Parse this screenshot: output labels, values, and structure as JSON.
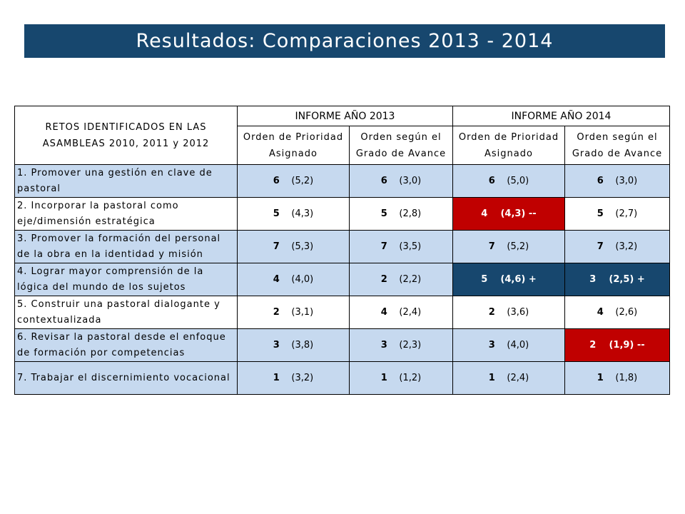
{
  "title": "Resultados: Comparaciones 2013 - 2014",
  "table": {
    "retos_header": "RETOS IDENTIFICADOS EN LAS ASAMBLEAS 2010, 2011 y 2012",
    "year_headers": [
      "INFORME AÑO 2013",
      "INFORME AÑO 2014"
    ],
    "sub_headers": [
      "Orden de Prioridad Asignado",
      "Orden según el Grado de Avance",
      "Orden de Prioridad Asignado",
      "Orden según el Grado de Avance"
    ],
    "rows": [
      {
        "label": "1. Promover una gestión en clave de pastoral",
        "cells": [
          {
            "pos": "6",
            "score": "(5,2)",
            "suffix": ""
          },
          {
            "pos": "6",
            "score": "(3,0)",
            "suffix": ""
          },
          {
            "pos": "6",
            "score": "(5,0)",
            "suffix": ""
          },
          {
            "pos": "6",
            "score": "(3,0)",
            "suffix": ""
          }
        ]
      },
      {
        "label": "2. Incorporar la pastoral como eje/dimensión estratégica",
        "cells": [
          {
            "pos": "5",
            "score": "(4,3)",
            "suffix": ""
          },
          {
            "pos": "5",
            "score": "(2,8)",
            "suffix": ""
          },
          {
            "pos": "4",
            "score": "(4,3)",
            "suffix": " --"
          },
          {
            "pos": "5",
            "score": "(2,7)",
            "suffix": ""
          }
        ]
      },
      {
        "label": "3. Promover la formación del personal de la obra en la identidad y misión",
        "cells": [
          {
            "pos": "7",
            "score": "(5,3)",
            "suffix": ""
          },
          {
            "pos": "7",
            "score": "(3,5)",
            "suffix": ""
          },
          {
            "pos": "7",
            "score": "(5,2)",
            "suffix": ""
          },
          {
            "pos": "7",
            "score": "(3,2)",
            "suffix": ""
          }
        ]
      },
      {
        "label": "4. Lograr mayor comprensión de la lógica del mundo de los sujetos",
        "cells": [
          {
            "pos": "4",
            "score": "(4,0)",
            "suffix": ""
          },
          {
            "pos": "2",
            "score": "(2,2)",
            "suffix": ""
          },
          {
            "pos": "5",
            "score": "(4,6)",
            "suffix": " +"
          },
          {
            "pos": "3",
            "score": "(2,5)",
            "suffix": " +"
          }
        ]
      },
      {
        "label": "5. Construir una pastoral dialogante y contextualizada",
        "cells": [
          {
            "pos": "2",
            "score": "(3,1)",
            "suffix": ""
          },
          {
            "pos": "4",
            "score": "(2,4)",
            "suffix": ""
          },
          {
            "pos": "2",
            "score": "(3,6)",
            "suffix": ""
          },
          {
            "pos": "4",
            "score": "(2,6)",
            "suffix": ""
          }
        ]
      },
      {
        "label": "6. Revisar la pastoral desde el enfoque de formación por competencias",
        "cells": [
          {
            "pos": "3",
            "score": "(3,8)",
            "suffix": ""
          },
          {
            "pos": "3",
            "score": "(2,3)",
            "suffix": ""
          },
          {
            "pos": "3",
            "score": "(4,0)",
            "suffix": ""
          },
          {
            "pos": "2",
            "score": "(1,9)",
            "suffix": " --"
          }
        ]
      },
      {
        "label": "7. Trabajar el discernimiento vocacional",
        "cells": [
          {
            "pos": "1",
            "score": "(3,2)",
            "suffix": ""
          },
          {
            "pos": "1",
            "score": "(1,2)",
            "suffix": ""
          },
          {
            "pos": "1",
            "score": "(2,4)",
            "suffix": ""
          },
          {
            "pos": "1",
            "score": "(1,8)",
            "suffix": ""
          }
        ]
      }
    ]
  },
  "colors": {
    "header_navy": "#17476e",
    "row_light_blue": "#c6d9ef",
    "highlight_red": "#c00000",
    "highlight_blue": "#17476e"
  }
}
